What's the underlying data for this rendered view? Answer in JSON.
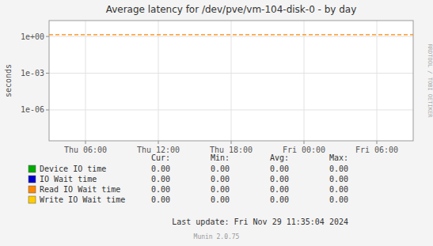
{
  "chart_data": {
    "type": "line",
    "title": "Average latency for /dev/pve/vm-104-disk-0 - by day",
    "y_label": "seconds",
    "log": "y",
    "grid": true,
    "legend": "bottom",
    "categories": [
      "Thu 06:00",
      "Thu 12:00",
      "Thu 18:00",
      "Fri 00:00",
      "Fri 06:00"
    ],
    "ylim": [
      3e-09,
      20
    ],
    "yticks": [
      {
        "value": 1e-06,
        "label": "1e-06"
      },
      {
        "value": 0.001,
        "label": "1e-03"
      },
      {
        "value": 1,
        "label": "1e+00"
      }
    ],
    "hline": {
      "value": 1.4,
      "color": "#ff8800",
      "line_style": "dashed"
    },
    "stats_headers": [
      "Cur:",
      "Min:",
      "Avg:",
      "Max:"
    ],
    "series": [
      {
        "name": "Device IO time",
        "color": "#00aa00",
        "stats": [
          {
            "value": 0,
            "label": "0.00"
          },
          {
            "value": 0,
            "label": "0.00"
          },
          {
            "value": 0,
            "label": "0.00"
          },
          {
            "value": 0,
            "label": "0.00"
          }
        ]
      },
      {
        "name": "IO Wait time",
        "color": "#0000cc",
        "stats": [
          {
            "value": 0,
            "label": "0.00"
          },
          {
            "value": 0,
            "label": "0.00"
          },
          {
            "value": 0,
            "label": "0.00"
          },
          {
            "value": 0,
            "label": "0.00"
          }
        ]
      },
      {
        "name": "Read IO Wait time",
        "color": "#ff8800",
        "stats": [
          {
            "value": 0,
            "label": "0.00"
          },
          {
            "value": 0,
            "label": "0.00"
          },
          {
            "value": 0,
            "label": "0.00"
          },
          {
            "value": 0,
            "label": "0.00"
          }
        ]
      },
      {
        "name": "Write IO Wait time",
        "color": "#ffcc00",
        "stats": [
          {
            "value": 0,
            "label": "0.00"
          },
          {
            "value": 0,
            "label": "0.00"
          },
          {
            "value": 0,
            "label": "0.00"
          },
          {
            "value": 0,
            "label": "0.00"
          }
        ]
      }
    ],
    "footer": "Last update: Fri Nov 29 11:35:04 2024",
    "watermark": "Munin 2.0.75",
    "side_label": "RRDTOOL / TOBI OETIKER"
  }
}
